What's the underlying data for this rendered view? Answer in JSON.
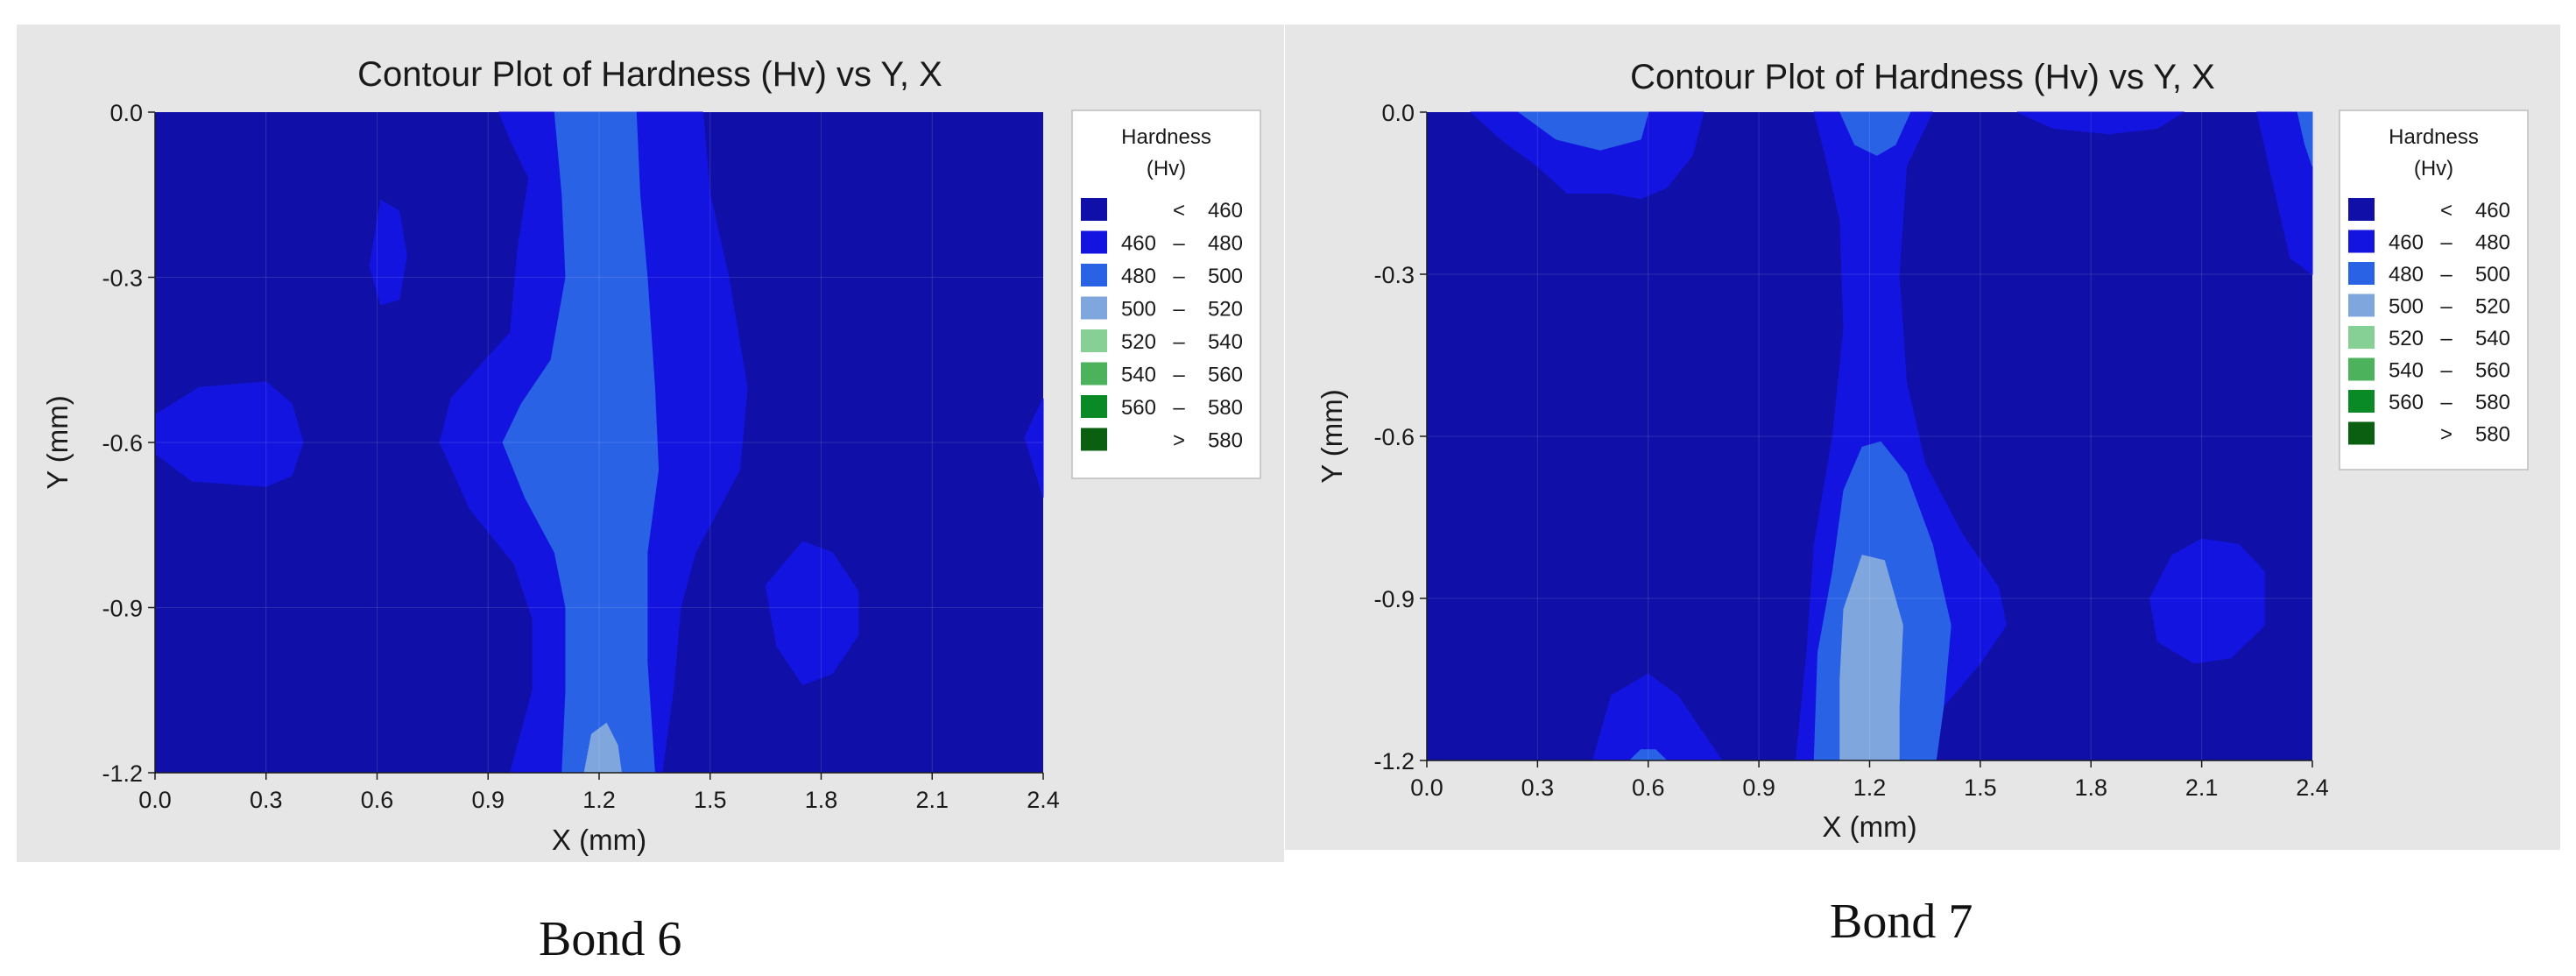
{
  "chart_data": [
    {
      "type": "heatmap",
      "title": "Contour Plot of Hardness (Hv) vs Y, X",
      "xlabel": "X (mm)",
      "ylabel": "Y (mm)",
      "xlim": [
        0.0,
        2.4
      ],
      "ylim": [
        -1.2,
        0.0
      ],
      "x_ticks": [
        "0.0",
        "0.3",
        "0.6",
        "0.9",
        "1.2",
        "1.5",
        "1.8",
        "2.1",
        "2.4"
      ],
      "y_ticks": [
        "0.0",
        "-0.3",
        "-0.6",
        "-0.9",
        "-1.2"
      ],
      "grid": true,
      "legend": {
        "title_line1": "Hardness",
        "title_line2": "(Hv)",
        "placement": "right",
        "entries": [
          {
            "sym": "<",
            "lo": "",
            "hi": "460",
            "color": "#1010a8"
          },
          {
            "sym": "–",
            "lo": "460",
            "hi": "480",
            "color": "#1414e0"
          },
          {
            "sym": "–",
            "lo": "480",
            "hi": "500",
            "color": "#2a62e6"
          },
          {
            "sym": "–",
            "lo": "500",
            "hi": "520",
            "color": "#80a6de"
          },
          {
            "sym": "–",
            "lo": "520",
            "hi": "540",
            "color": "#86d096"
          },
          {
            "sym": "–",
            "lo": "540",
            "hi": "560",
            "color": "#4db25c"
          },
          {
            "sym": "–",
            "lo": "560",
            "hi": "580",
            "color": "#0a8a26"
          },
          {
            "sym": ">",
            "lo": "",
            "hi": "580",
            "color": "#0a6010"
          }
        ]
      },
      "regions": [
        {
          "level": 1,
          "points": [
            [
              0.61,
              -0.16
            ],
            [
              0.66,
              -0.18
            ],
            [
              0.68,
              -0.26
            ],
            [
              0.66,
              -0.34
            ],
            [
              0.61,
              -0.35
            ],
            [
              0.58,
              -0.28
            ]
          ]
        },
        {
          "level": 1,
          "points": [
            [
              0.0,
              -0.55
            ],
            [
              0.12,
              -0.5
            ],
            [
              0.3,
              -0.49
            ],
            [
              0.37,
              -0.53
            ],
            [
              0.4,
              -0.6
            ],
            [
              0.37,
              -0.66
            ],
            [
              0.3,
              -0.68
            ],
            [
              0.1,
              -0.67
            ],
            [
              0.0,
              -0.62
            ]
          ]
        },
        {
          "level": 1,
          "points": [
            [
              1.75,
              -0.78
            ],
            [
              1.83,
              -0.8
            ],
            [
              1.9,
              -0.87
            ],
            [
              1.9,
              -0.95
            ],
            [
              1.83,
              -1.02
            ],
            [
              1.75,
              -1.04
            ],
            [
              1.68,
              -0.97
            ],
            [
              1.65,
              -0.86
            ]
          ]
        },
        {
          "level": 1,
          "points": [
            [
              2.4,
              -0.52
            ],
            [
              2.35,
              -0.59
            ],
            [
              2.4,
              -0.7
            ]
          ]
        },
        {
          "level": 1,
          "points": [
            [
              0.93,
              0.0
            ],
            [
              1.48,
              0.0
            ],
            [
              1.5,
              -0.15
            ],
            [
              1.55,
              -0.3
            ],
            [
              1.6,
              -0.5
            ],
            [
              1.58,
              -0.65
            ],
            [
              1.46,
              -0.8
            ],
            [
              1.42,
              -0.9
            ],
            [
              1.4,
              -1.05
            ],
            [
              1.37,
              -1.2
            ],
            [
              0.96,
              -1.2
            ],
            [
              1.02,
              -1.05
            ],
            [
              1.02,
              -0.92
            ],
            [
              0.97,
              -0.82
            ],
            [
              0.85,
              -0.72
            ],
            [
              0.77,
              -0.6
            ],
            [
              0.8,
              -0.52
            ],
            [
              0.88,
              -0.46
            ],
            [
              0.96,
              -0.4
            ],
            [
              0.98,
              -0.25
            ],
            [
              1.01,
              -0.12
            ],
            [
              0.96,
              -0.05
            ]
          ]
        },
        {
          "level": 2,
          "points": [
            [
              1.08,
              0.0
            ],
            [
              1.3,
              0.0
            ],
            [
              1.31,
              -0.15
            ],
            [
              1.33,
              -0.3
            ],
            [
              1.35,
              -0.5
            ],
            [
              1.36,
              -0.65
            ],
            [
              1.33,
              -0.8
            ],
            [
              1.33,
              -1.0
            ],
            [
              1.35,
              -1.2
            ],
            [
              1.1,
              -1.2
            ],
            [
              1.11,
              -1.05
            ],
            [
              1.11,
              -0.9
            ],
            [
              1.08,
              -0.8
            ],
            [
              1.0,
              -0.7
            ],
            [
              0.94,
              -0.6
            ],
            [
              0.99,
              -0.53
            ],
            [
              1.07,
              -0.45
            ],
            [
              1.11,
              -0.3
            ],
            [
              1.1,
              -0.15
            ]
          ]
        },
        {
          "level": 3,
          "points": [
            [
              1.16,
              -1.2
            ],
            [
              1.18,
              -1.13
            ],
            [
              1.22,
              -1.11
            ],
            [
              1.25,
              -1.15
            ],
            [
              1.26,
              -1.2
            ]
          ]
        }
      ]
    },
    {
      "type": "heatmap",
      "title": "Contour Plot of Hardness (Hv) vs Y, X",
      "xlabel": "X (mm)",
      "ylabel": "Y (mm)",
      "xlim": [
        0.0,
        2.4
      ],
      "ylim": [
        -1.2,
        0.0
      ],
      "x_ticks": [
        "0.0",
        "0.3",
        "0.6",
        "0.9",
        "1.2",
        "1.5",
        "1.8",
        "2.1",
        "2.4"
      ],
      "y_ticks": [
        "0.0",
        "-0.3",
        "-0.6",
        "-0.9",
        "-1.2"
      ],
      "grid": true,
      "legend": {
        "title_line1": "Hardness",
        "title_line2": "(Hv)",
        "placement": "right",
        "entries": [
          {
            "sym": "<",
            "lo": "",
            "hi": "460",
            "color": "#1010a8"
          },
          {
            "sym": "–",
            "lo": "460",
            "hi": "480",
            "color": "#1414e0"
          },
          {
            "sym": "–",
            "lo": "480",
            "hi": "500",
            "color": "#2a62e6"
          },
          {
            "sym": "–",
            "lo": "500",
            "hi": "520",
            "color": "#80a6de"
          },
          {
            "sym": "–",
            "lo": "520",
            "hi": "540",
            "color": "#86d096"
          },
          {
            "sym": "–",
            "lo": "540",
            "hi": "560",
            "color": "#4db25c"
          },
          {
            "sym": "–",
            "lo": "560",
            "hi": "580",
            "color": "#0a8a26"
          },
          {
            "sym": ">",
            "lo": "",
            "hi": "580",
            "color": "#0a6010"
          }
        ]
      },
      "regions": [
        {
          "level": 1,
          "points": [
            [
              0.12,
              0.0
            ],
            [
              0.75,
              0.0
            ],
            [
              0.72,
              -0.08
            ],
            [
              0.65,
              -0.14
            ],
            [
              0.58,
              -0.16
            ],
            [
              0.5,
              -0.15
            ],
            [
              0.38,
              -0.15
            ],
            [
              0.3,
              -0.1
            ],
            [
              0.2,
              -0.05
            ]
          ]
        },
        {
          "level": 2,
          "points": [
            [
              0.25,
              0.0
            ],
            [
              0.6,
              0.0
            ],
            [
              0.58,
              -0.05
            ],
            [
              0.47,
              -0.07
            ],
            [
              0.35,
              -0.05
            ]
          ]
        },
        {
          "level": 1,
          "points": [
            [
              1.05,
              0.0
            ],
            [
              1.37,
              0.0
            ],
            [
              1.3,
              -0.1
            ],
            [
              1.28,
              -0.3
            ],
            [
              1.3,
              -0.5
            ],
            [
              1.35,
              -0.65
            ],
            [
              1.45,
              -0.78
            ],
            [
              1.55,
              -0.88
            ],
            [
              1.57,
              -0.95
            ],
            [
              1.5,
              -1.02
            ],
            [
              1.4,
              -1.1
            ],
            [
              1.38,
              -1.2
            ],
            [
              1.0,
              -1.2
            ],
            [
              1.03,
              -1.0
            ],
            [
              1.05,
              -0.8
            ],
            [
              1.1,
              -0.6
            ],
            [
              1.13,
              -0.4
            ],
            [
              1.12,
              -0.2
            ],
            [
              1.08,
              -0.08
            ]
          ]
        },
        {
          "level": 2,
          "points": [
            [
              1.12,
              0.0
            ],
            [
              1.31,
              0.0
            ],
            [
              1.27,
              -0.06
            ],
            [
              1.22,
              -0.08
            ],
            [
              1.16,
              -0.06
            ]
          ]
        },
        {
          "level": 1,
          "points": [
            [
              1.6,
              0.0
            ],
            [
              2.05,
              0.0
            ],
            [
              1.98,
              -0.03
            ],
            [
              1.85,
              -0.04
            ],
            [
              1.7,
              -0.03
            ]
          ]
        },
        {
          "level": 1,
          "points": [
            [
              2.25,
              0.0
            ],
            [
              2.4,
              0.0
            ],
            [
              2.4,
              -0.3
            ],
            [
              2.34,
              -0.27
            ],
            [
              2.3,
              -0.15
            ]
          ]
        },
        {
          "level": 2,
          "points": [
            [
              2.36,
              0.0
            ],
            [
              2.4,
              0.0
            ],
            [
              2.4,
              -0.1
            ],
            [
              2.38,
              -0.06
            ]
          ]
        },
        {
          "level": 2,
          "points": [
            [
              1.18,
              -0.62
            ],
            [
              1.23,
              -0.61
            ],
            [
              1.3,
              -0.67
            ],
            [
              1.37,
              -0.8
            ],
            [
              1.42,
              -0.95
            ],
            [
              1.4,
              -1.1
            ],
            [
              1.38,
              -1.2
            ],
            [
              1.05,
              -1.2
            ],
            [
              1.06,
              -1.0
            ],
            [
              1.1,
              -0.85
            ],
            [
              1.13,
              -0.7
            ]
          ]
        },
        {
          "level": 3,
          "points": [
            [
              1.18,
              -0.82
            ],
            [
              1.24,
              -0.83
            ],
            [
              1.29,
              -0.95
            ],
            [
              1.28,
              -1.1
            ],
            [
              1.28,
              -1.2
            ],
            [
              1.12,
              -1.2
            ],
            [
              1.12,
              -1.05
            ],
            [
              1.13,
              -0.92
            ]
          ]
        },
        {
          "level": 1,
          "points": [
            [
              2.1,
              -0.79
            ],
            [
              2.2,
              -0.8
            ],
            [
              2.27,
              -0.85
            ],
            [
              2.27,
              -0.95
            ],
            [
              2.18,
              -1.01
            ],
            [
              2.08,
              -1.02
            ],
            [
              1.98,
              -0.98
            ],
            [
              1.96,
              -0.9
            ],
            [
              2.02,
              -0.82
            ]
          ]
        },
        {
          "level": 1,
          "points": [
            [
              0.45,
              -1.2
            ],
            [
              0.5,
              -1.08
            ],
            [
              0.6,
              -1.04
            ],
            [
              0.68,
              -1.08
            ],
            [
              0.75,
              -1.15
            ],
            [
              0.8,
              -1.2
            ]
          ]
        },
        {
          "level": 2,
          "points": [
            [
              0.55,
              -1.2
            ],
            [
              0.58,
              -1.18
            ],
            [
              0.62,
              -1.18
            ],
            [
              0.65,
              -1.2
            ]
          ]
        }
      ]
    }
  ],
  "captions": [
    "Bond 6",
    "Bond 7"
  ]
}
